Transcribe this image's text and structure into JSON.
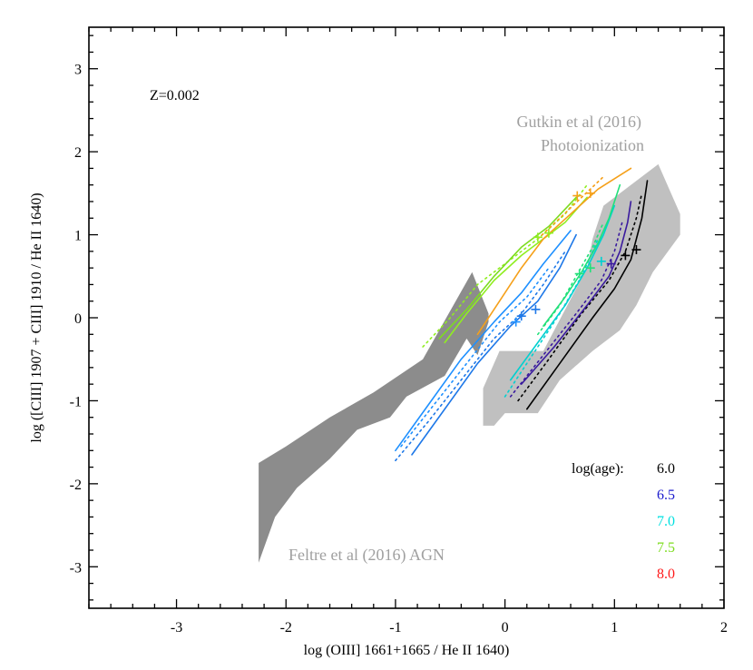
{
  "chart_data": {
    "type": "line",
    "xlabel": "log (OIII] 1661+1665 / He II 1640)",
    "ylabel": "log ([CIII] 1907 + CIII] 1910 / He II 1640)",
    "xlim": [
      -3.8,
      2.0
    ],
    "ylim": [
      -3.5,
      3.5
    ],
    "x_ticks": [
      -3,
      -2,
      -1,
      0,
      1,
      2
    ],
    "y_ticks": [
      -3,
      -2,
      -1,
      0,
      1,
      2,
      3
    ],
    "grid": false,
    "metallicity_label": "Z=0.002",
    "regions": [
      {
        "name": "Feltre et al (2016) AGN",
        "color": "#8c8c8c",
        "polygon": [
          [
            -2.25,
            -2.95
          ],
          [
            -2.25,
            -1.75
          ],
          [
            -2.0,
            -1.55
          ],
          [
            -1.6,
            -1.2
          ],
          [
            -1.2,
            -0.9
          ],
          [
            -0.75,
            -0.5
          ],
          [
            -0.3,
            0.55
          ],
          [
            -0.15,
            0.05
          ],
          [
            -0.15,
            -0.05
          ],
          [
            -0.25,
            -0.45
          ],
          [
            -0.35,
            -0.25
          ],
          [
            -0.55,
            -0.7
          ],
          [
            -0.9,
            -0.95
          ],
          [
            -1.05,
            -1.2
          ],
          [
            -1.35,
            -1.35
          ],
          [
            -1.6,
            -1.7
          ],
          [
            -1.9,
            -2.05
          ],
          [
            -2.1,
            -2.4
          ]
        ]
      },
      {
        "name": "Gutkin et al (2016) Photoionization",
        "color": "#c0c0c0",
        "polygon": [
          [
            -0.2,
            -1.3
          ],
          [
            -0.2,
            -0.85
          ],
          [
            -0.05,
            -0.4
          ],
          [
            0.35,
            -0.4
          ],
          [
            0.75,
            0.6
          ],
          [
            0.8,
            0.95
          ],
          [
            0.9,
            1.35
          ],
          [
            1.15,
            1.6
          ],
          [
            1.4,
            1.85
          ],
          [
            1.6,
            1.25
          ],
          [
            1.6,
            1.0
          ],
          [
            1.35,
            0.55
          ],
          [
            1.2,
            0.15
          ],
          [
            1.05,
            -0.15
          ],
          [
            0.8,
            -0.4
          ],
          [
            0.5,
            -0.75
          ],
          [
            0.3,
            -1.15
          ],
          [
            0.0,
            -1.15
          ],
          [
            -0.1,
            -1.3
          ]
        ]
      }
    ],
    "region_labels": [
      "Gutkin et al (2016)",
      "Photoionization",
      "Feltre et al (2016) AGN"
    ],
    "legend": {
      "title": "log(age):",
      "entries": [
        {
          "label": "6.0",
          "color": "#000000"
        },
        {
          "label": "6.5",
          "color": "#1a1acc"
        },
        {
          "label": "7.0",
          "color": "#00e0e0"
        },
        {
          "label": "7.5",
          "color": "#7ddc1f"
        },
        {
          "label": "8.0",
          "color": "#ff1a1a"
        }
      ]
    },
    "series": [
      {
        "color": "#000000",
        "dash": false,
        "x": [
          0.2,
          0.5,
          0.8,
          1.0,
          1.15,
          1.25,
          1.3
        ],
        "y": [
          -1.1,
          -0.55,
          0.0,
          0.35,
          0.7,
          1.2,
          1.65
        ]
      },
      {
        "color": "#000000",
        "dash": true,
        "x": [
          0.12,
          0.4,
          0.7,
          0.95,
          1.1,
          1.2,
          1.25
        ],
        "y": [
          -1.0,
          -0.5,
          0.05,
          0.45,
          0.8,
          1.2,
          1.5
        ]
      },
      {
        "color": "#3a1a9e",
        "dash": false,
        "x": [
          0.15,
          0.45,
          0.75,
          0.95,
          1.05,
          1.12,
          1.15
        ],
        "y": [
          -0.8,
          -0.35,
          0.15,
          0.5,
          0.8,
          1.15,
          1.4
        ]
      },
      {
        "color": "#3a1a9e",
        "dash": true,
        "x": [
          0.05,
          0.35,
          0.65,
          0.88,
          1.0,
          1.07
        ],
        "y": [
          -0.95,
          -0.45,
          0.05,
          0.45,
          0.8,
          1.15
        ]
      },
      {
        "color": "#00d0d0",
        "dash": false,
        "x": [
          0.05,
          0.3,
          0.55,
          0.75,
          0.9,
          1.0
        ],
        "y": [
          -0.75,
          -0.3,
          0.15,
          0.6,
          1.0,
          1.35
        ]
      },
      {
        "color": "#00d0d0",
        "dash": true,
        "x": [
          0.0,
          0.25,
          0.5,
          0.7,
          0.85
        ],
        "y": [
          -0.95,
          -0.45,
          0.05,
          0.5,
          0.95
        ]
      },
      {
        "color": "#22e07a",
        "dash": false,
        "x": [
          0.35,
          0.55,
          0.7,
          0.85,
          0.95,
          1.05
        ],
        "y": [
          -0.1,
          0.25,
          0.55,
          0.9,
          1.2,
          1.6
        ]
      },
      {
        "color": "#22e07a",
        "dash": true,
        "x": [
          0.3,
          0.5,
          0.65,
          0.8,
          0.9
        ],
        "y": [
          -0.2,
          0.15,
          0.5,
          0.85,
          1.15
        ]
      },
      {
        "color": "#1e78e8",
        "dash": false,
        "x": [
          -0.85,
          -0.55,
          -0.25,
          0.05,
          0.3,
          0.5,
          0.65
        ],
        "y": [
          -1.65,
          -1.1,
          -0.55,
          -0.1,
          0.2,
          0.6,
          1.0
        ]
      },
      {
        "color": "#1e78e8",
        "dash": true,
        "x": [
          -1.0,
          -0.7,
          -0.4,
          -0.1,
          0.15,
          0.35,
          0.55
        ],
        "y": [
          -1.72,
          -1.25,
          -0.75,
          -0.25,
          0.05,
          0.4,
          0.8
        ]
      },
      {
        "color": "#1e90ff",
        "dash": false,
        "x": [
          -1.0,
          -0.7,
          -0.4,
          -0.1,
          0.15,
          0.35,
          0.6
        ],
        "y": [
          -1.6,
          -1.05,
          -0.5,
          -0.05,
          0.3,
          0.65,
          1.05
        ]
      },
      {
        "color": "#1e90ff",
        "dash": true,
        "x": [
          -0.95,
          -0.65,
          -0.35,
          -0.05,
          0.2,
          0.4
        ],
        "y": [
          -1.55,
          -1.05,
          -0.55,
          -0.05,
          0.25,
          0.6
        ]
      },
      {
        "color": "#90ee20",
        "dash": false,
        "x": [
          -0.55,
          -0.35,
          -0.1,
          0.15,
          0.35,
          0.55,
          0.75
        ],
        "y": [
          -0.3,
          0.05,
          0.45,
          0.75,
          0.95,
          1.15,
          1.45
        ]
      },
      {
        "color": "#90ee20",
        "dash": true,
        "x": [
          -0.75,
          -0.5,
          -0.25,
          0.05,
          0.3,
          0.55,
          0.75
        ],
        "y": [
          -0.35,
          0.0,
          0.4,
          0.7,
          0.95,
          1.25,
          1.6
        ]
      },
      {
        "color": "#7ddc1f",
        "dash": false,
        "x": [
          -0.6,
          -0.35,
          -0.1,
          0.15,
          0.4,
          0.65
        ],
        "y": [
          -0.25,
          0.1,
          0.5,
          0.85,
          1.1,
          1.45
        ]
      },
      {
        "color": "#f5a01a",
        "dash": false,
        "x": [
          -0.25,
          -0.05,
          0.15,
          0.35,
          0.6,
          0.85,
          1.15
        ],
        "y": [
          -0.2,
          0.2,
          0.6,
          0.95,
          1.25,
          1.55,
          1.8
        ]
      },
      {
        "color": "#f5a01a",
        "dash": true,
        "x": [
          0.3,
          0.5,
          0.7,
          0.9
        ],
        "y": [
          0.95,
          1.2,
          1.45,
          1.7
        ]
      }
    ],
    "markers": [
      {
        "x": 1.2,
        "y": 0.82,
        "color": "#000000"
      },
      {
        "x": 1.1,
        "y": 0.75,
        "color": "#000000"
      },
      {
        "x": 0.97,
        "y": 0.65,
        "color": "#3a1a9e"
      },
      {
        "x": 0.88,
        "y": 0.68,
        "color": "#00d0d0"
      },
      {
        "x": 0.78,
        "y": 0.6,
        "color": "#22e07a"
      },
      {
        "x": 0.68,
        "y": 0.53,
        "color": "#22e07a"
      },
      {
        "x": 0.15,
        "y": 0.02,
        "color": "#1e78e8"
      },
      {
        "x": 0.28,
        "y": 0.1,
        "color": "#1e78e8"
      },
      {
        "x": 0.1,
        "y": -0.05,
        "color": "#1e90ff"
      },
      {
        "x": 0.3,
        "y": 0.97,
        "color": "#90ee20"
      },
      {
        "x": 0.4,
        "y": 1.02,
        "color": "#90ee20"
      },
      {
        "x": 0.66,
        "y": 1.47,
        "color": "#f5a01a"
      },
      {
        "x": 0.78,
        "y": 1.5,
        "color": "#f5a01a"
      }
    ]
  }
}
